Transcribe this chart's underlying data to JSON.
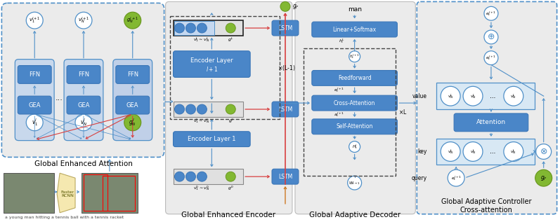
{
  "box_blue": "#4a86c8",
  "box_blue_dark": "#3a76b8",
  "green_circle": "#82b832",
  "green_circle_dark": "#6a9820",
  "white_circle": "#ffffff",
  "light_gray_bg": "#ebebeb",
  "medium_blue_bg": "#c8d8ec",
  "arrow_blue": "#5090c8",
  "arrow_red": "#d84040",
  "arrow_orange": "#cc7722",
  "dark_dashed": "#444444",
  "label_gea": "Global Enhanced Attention",
  "label_gee": "Global Enhanced Encoder",
  "label_gad": "Global Adaptive Decoder",
  "label_gac": "Global Adaptive Controller\nCross-attention",
  "caption": "a young man hitting a tennis ball with a tennis racket"
}
